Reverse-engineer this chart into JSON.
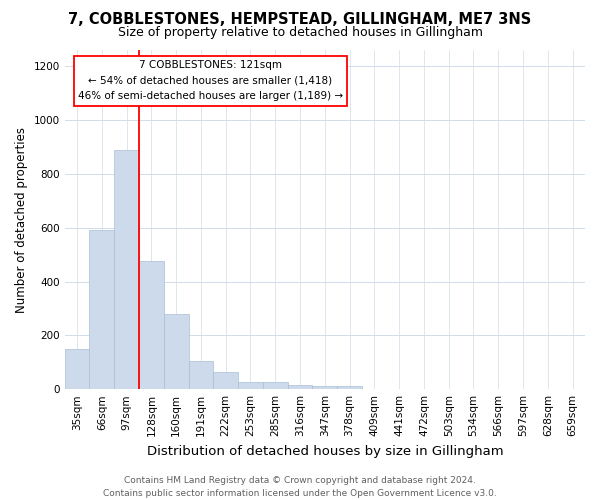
{
  "title1": "7, COBBLESTONES, HEMPSTEAD, GILLINGHAM, ME7 3NS",
  "title2": "Size of property relative to detached houses in Gillingham",
  "xlabel": "Distribution of detached houses by size in Gillingham",
  "ylabel": "Number of detached properties",
  "bar_labels": [
    "35sqm",
    "66sqm",
    "97sqm",
    "128sqm",
    "160sqm",
    "191sqm",
    "222sqm",
    "253sqm",
    "285sqm",
    "316sqm",
    "347sqm",
    "378sqm",
    "409sqm",
    "441sqm",
    "472sqm",
    "503sqm",
    "534sqm",
    "566sqm",
    "597sqm",
    "628sqm",
    "659sqm"
  ],
  "bar_heights": [
    150,
    590,
    890,
    475,
    280,
    105,
    62,
    28,
    25,
    15,
    10,
    10,
    0,
    0,
    0,
    0,
    0,
    0,
    0,
    0,
    0
  ],
  "bar_color": "#ccdaeb",
  "bar_edge_color": "#a8bfd4",
  "red_line_x": 2.5,
  "ylim": [
    0,
    1260
  ],
  "yticks": [
    0,
    200,
    400,
    600,
    800,
    1000,
    1200
  ],
  "annotation_title": "7 COBBLESTONES: 121sqm",
  "annotation_line1": "← 54% of detached houses are smaller (1,418)",
  "annotation_line2": "46% of semi-detached houses are larger (1,189) →",
  "footer1": "Contains HM Land Registry data © Crown copyright and database right 2024.",
  "footer2": "Contains public sector information licensed under the Open Government Licence v3.0.",
  "bg_color": "#ffffff",
  "grid_color": "#d0dce8",
  "title1_fontsize": 10.5,
  "title2_fontsize": 9,
  "xlabel_fontsize": 9.5,
  "ylabel_fontsize": 8.5,
  "tick_fontsize": 7.5,
  "annotation_fontsize": 7.5,
  "footer_fontsize": 6.5
}
